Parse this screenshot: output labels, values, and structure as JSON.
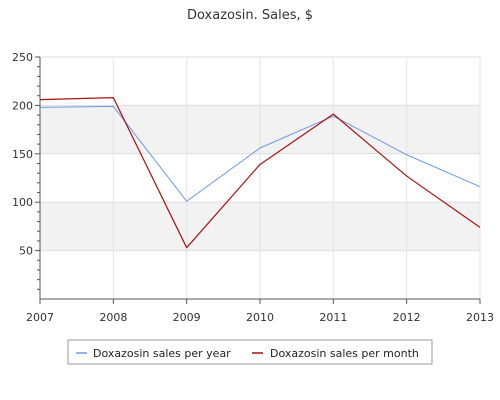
{
  "chart_data": {
    "type": "line",
    "title": "Doxazosin. Sales, $",
    "xlabel": "",
    "ylabel": "",
    "categories": [
      "2007",
      "2008",
      "2009",
      "2010",
      "2011",
      "2012",
      "2013"
    ],
    "ylim": [
      0,
      250
    ],
    "yticks": [
      50,
      100,
      150,
      200,
      250
    ],
    "grid": true,
    "legend_position": "bottom",
    "series": [
      {
        "name": "Doxazosin sales per year",
        "color": "#6a9ae6",
        "values": [
          198,
          199,
          101,
          156,
          189,
          149,
          116
        ]
      },
      {
        "name": "Doxazosin sales per month",
        "color": "#aa1111",
        "values": [
          206,
          208,
          53,
          139,
          191,
          127,
          74
        ]
      }
    ]
  }
}
